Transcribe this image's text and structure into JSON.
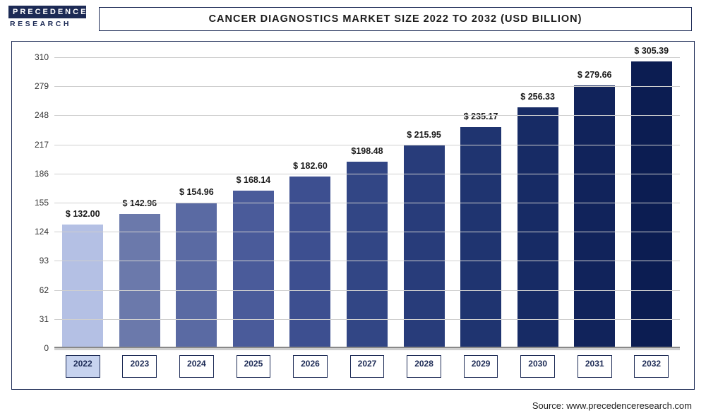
{
  "logo": {
    "line1": "PRECEDENCE",
    "line2": "RESEARCH"
  },
  "title": "CANCER DIAGNOSTICS MARKET SIZE 2022 TO 2032 (USD BILLION)",
  "source": "Source: www.precedenceresearch.com",
  "chart": {
    "type": "bar",
    "categories": [
      "2022",
      "2023",
      "2024",
      "2025",
      "2026",
      "2027",
      "2028",
      "2029",
      "2030",
      "2031",
      "2032"
    ],
    "values": [
      132.0,
      142.96,
      154.96,
      168.14,
      182.6,
      198.48,
      215.95,
      235.17,
      256.33,
      279.66,
      305.39
    ],
    "value_labels": [
      "$ 132.00",
      "$ 142.96",
      "$ 154.96",
      "$ 168.14",
      "$ 182.60",
      "$198.48",
      "$ 215.95",
      "$ 235.17",
      "$ 256.33",
      "$ 279.66",
      "$ 305.39"
    ],
    "bar_colors": [
      "#b4c0e4",
      "#6b79ab",
      "#5a6aa3",
      "#4a5b9a",
      "#3d4f90",
      "#324685",
      "#283c7a",
      "#1f3470",
      "#172b65",
      "#11235b",
      "#0c1d52"
    ],
    "highlight_index": 0,
    "ymin": 0,
    "ymax": 310,
    "yticks": [
      0,
      31,
      62,
      93,
      124,
      155,
      186,
      217,
      248,
      279,
      310
    ],
    "background_color": "#ffffff",
    "grid_color": "#cfcfcf",
    "border_color": "#1c2a55",
    "label_fontsize": 12.5,
    "tick_fontsize": 12,
    "title_fontsize": 14.5,
    "bar_width_pct": 72
  }
}
